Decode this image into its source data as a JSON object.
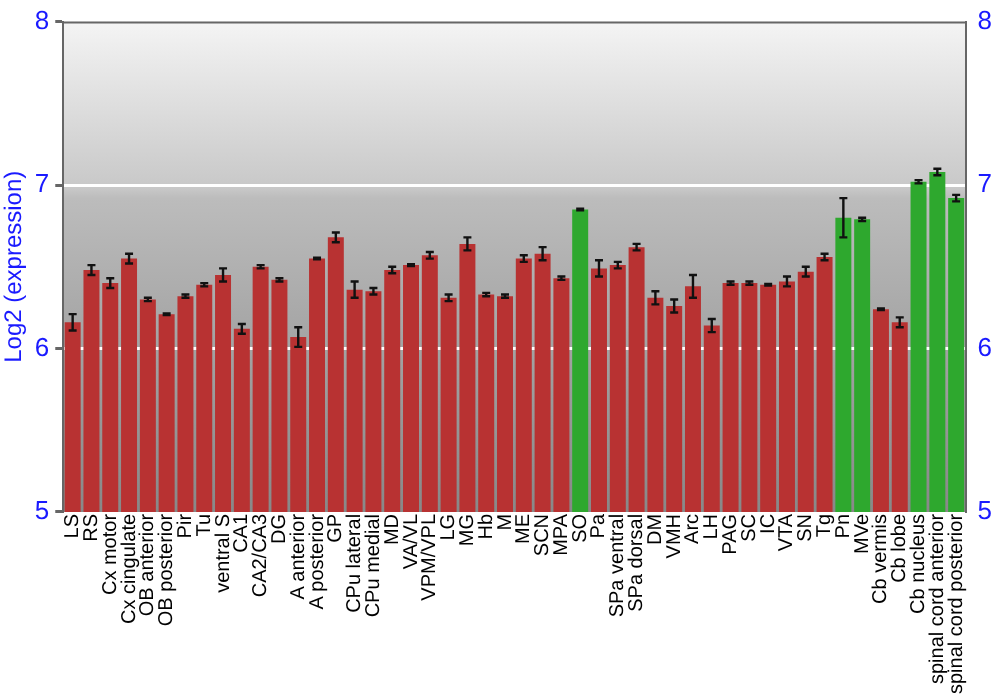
{
  "chart_data": {
    "type": "bar",
    "ylabel": "Log2 (expression)",
    "categories": [
      "LS",
      "RS",
      "Cx motor",
      "Cx cingulate",
      "OB anterior",
      "OB posterior",
      "Pir",
      "Tu",
      "ventral S",
      "CA1",
      "CA2/CA3",
      "DG",
      "A anterior",
      "A posterior",
      "GP",
      "CPu lateral",
      "CPu medial",
      "MD",
      "VA/VL",
      "VPM/VPL",
      "LG",
      "MG",
      "Hb",
      "M",
      "ME",
      "SCN",
      "MPA",
      "SO",
      "Pa",
      "SPa ventral",
      "SPa dorsal",
      "DM",
      "VMH",
      "Arc",
      "LH",
      "PAG",
      "SC",
      "IC",
      "VTA",
      "SN",
      "Tg",
      "Pn",
      "MVe",
      "Cb vermis",
      "Cb lobe",
      "Cb nucleus",
      "spinal cord anterior",
      "spinal cord posterior"
    ],
    "values": [
      6.16,
      6.48,
      6.4,
      6.55,
      6.3,
      6.21,
      6.32,
      6.39,
      6.45,
      6.12,
      6.5,
      6.42,
      6.07,
      6.55,
      6.68,
      6.36,
      6.35,
      6.48,
      6.51,
      6.57,
      6.31,
      6.64,
      6.33,
      6.32,
      6.55,
      6.58,
      6.43,
      6.85,
      6.49,
      6.51,
      6.62,
      6.31,
      6.26,
      6.38,
      6.14,
      6.4,
      6.4,
      6.39,
      6.41,
      6.47,
      6.56,
      6.8,
      6.79,
      6.24,
      6.16,
      7.02,
      7.08,
      6.92
    ],
    "errors": [
      0.05,
      0.03,
      0.03,
      0.03,
      0.01,
      0.005,
      0.01,
      0.01,
      0.04,
      0.03,
      0.01,
      0.01,
      0.06,
      0.005,
      0.03,
      0.05,
      0.02,
      0.02,
      0.005,
      0.02,
      0.02,
      0.04,
      0.01,
      0.01,
      0.02,
      0.04,
      0.01,
      0.005,
      0.05,
      0.02,
      0.02,
      0.04,
      0.04,
      0.07,
      0.04,
      0.01,
      0.01,
      0.005,
      0.03,
      0.03,
      0.02,
      0.12,
      0.01,
      0.005,
      0.03,
      0.01,
      0.02,
      0.02
    ],
    "colors": [
      "#b83232",
      "#b83232",
      "#b83232",
      "#b83232",
      "#b83232",
      "#b83232",
      "#b83232",
      "#b83232",
      "#b83232",
      "#b83232",
      "#b83232",
      "#b83232",
      "#b83232",
      "#b83232",
      "#b83232",
      "#b83232",
      "#b83232",
      "#b83232",
      "#b83232",
      "#b83232",
      "#b83232",
      "#b83232",
      "#b83232",
      "#b83232",
      "#b83232",
      "#b83232",
      "#b83232",
      "#2ea82e",
      "#b83232",
      "#b83232",
      "#b83232",
      "#b83232",
      "#b83232",
      "#b83232",
      "#b83232",
      "#b83232",
      "#b83232",
      "#b83232",
      "#b83232",
      "#b83232",
      "#b83232",
      "#2ea82e",
      "#2ea82e",
      "#b83232",
      "#b83232",
      "#2ea82e",
      "#2ea82e",
      "#2ea82e"
    ],
    "ylim": [
      5,
      8
    ],
    "yticks": [
      5,
      6,
      7,
      8
    ],
    "y2lim": [
      5,
      8
    ],
    "y2ticks": [
      5,
      6,
      7,
      8
    ],
    "grid": "y",
    "legend": false
  }
}
